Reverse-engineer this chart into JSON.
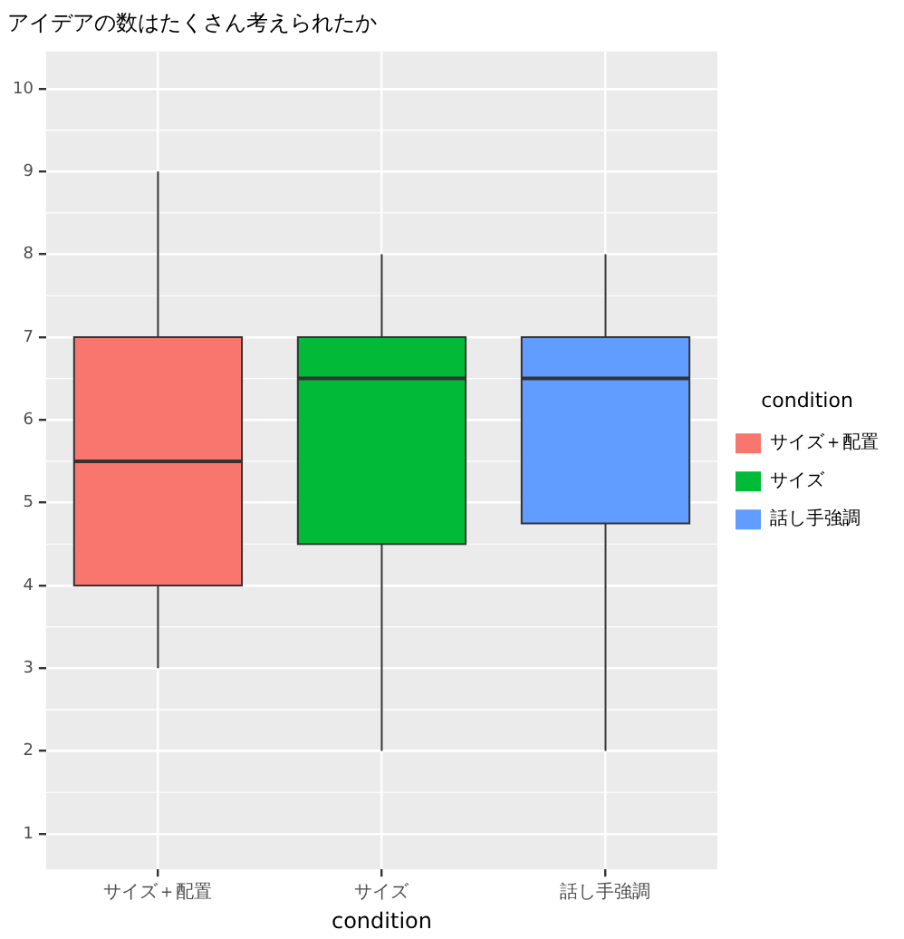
{
  "chart_data": {
    "type": "box",
    "title": "アイデアの数はたくさん考えられたか",
    "xlabel": "condition",
    "legend_title": "condition",
    "categories": [
      "サイズ＋配置",
      "サイズ",
      "話し手強調"
    ],
    "series": [
      {
        "name": "サイズ＋配置",
        "color": "#f8766d",
        "boxes": [
          {
            "low": 3,
            "q1": 4,
            "median": 5.5,
            "q3": 7,
            "high": 9
          },
          null,
          null
        ]
      },
      {
        "name": "サイズ",
        "color": "#00ba38",
        "boxes": [
          null,
          {
            "low": 2,
            "q1": 4.5,
            "median": 6.5,
            "q3": 7,
            "high": 8
          },
          null
        ]
      },
      {
        "name": "話し手強調",
        "color": "#619cff",
        "boxes": [
          null,
          null,
          {
            "low": 2,
            "q1": 4.75,
            "median": 6.5,
            "q3": 7,
            "high": 8
          }
        ]
      }
    ],
    "ylim": [
      0.57,
      10.45
    ],
    "yticks": [
      1,
      2,
      3,
      4,
      5,
      6,
      7,
      8,
      9,
      10
    ],
    "grid": true,
    "legend": "right"
  }
}
